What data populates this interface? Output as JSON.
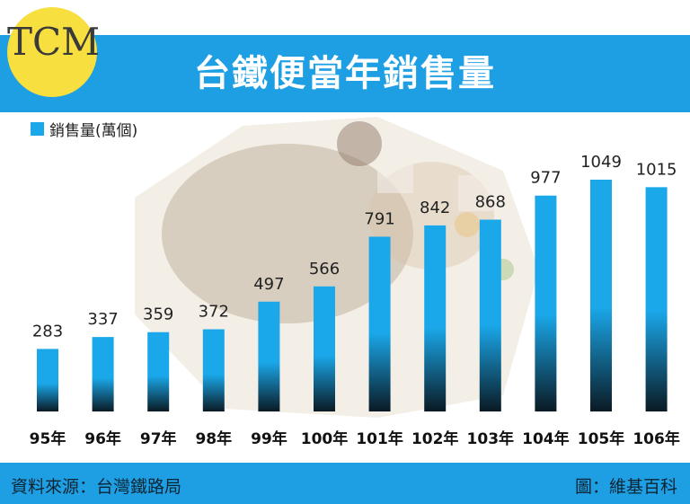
{
  "title": "台鐵便當年銷售量",
  "logo_text": "TCM",
  "colors": {
    "accent": "#1f9fe3",
    "bar_top": "#1aa8ea",
    "bar_bottom": "#0a1a24",
    "logo": "#f6df3f"
  },
  "chart_data": {
    "type": "bar",
    "categories": [
      "95年",
      "96年",
      "97年",
      "98年",
      "99年",
      "100年",
      "101年",
      "102年",
      "103年",
      "104年",
      "105年",
      "106年"
    ],
    "series": [
      {
        "name": "銷售量(萬個)",
        "values": [
          283,
          337,
          359,
          372,
          497,
          566,
          791,
          842,
          868,
          977,
          1049,
          1015
        ]
      }
    ],
    "title": "台鐵便當年銷售量",
    "legend": "top-left",
    "ylim": [
      0,
      1100
    ],
    "grid": false
  },
  "footer": {
    "source": "資料來源：台灣鐵路局",
    "credit": "圖：維基百科"
  }
}
